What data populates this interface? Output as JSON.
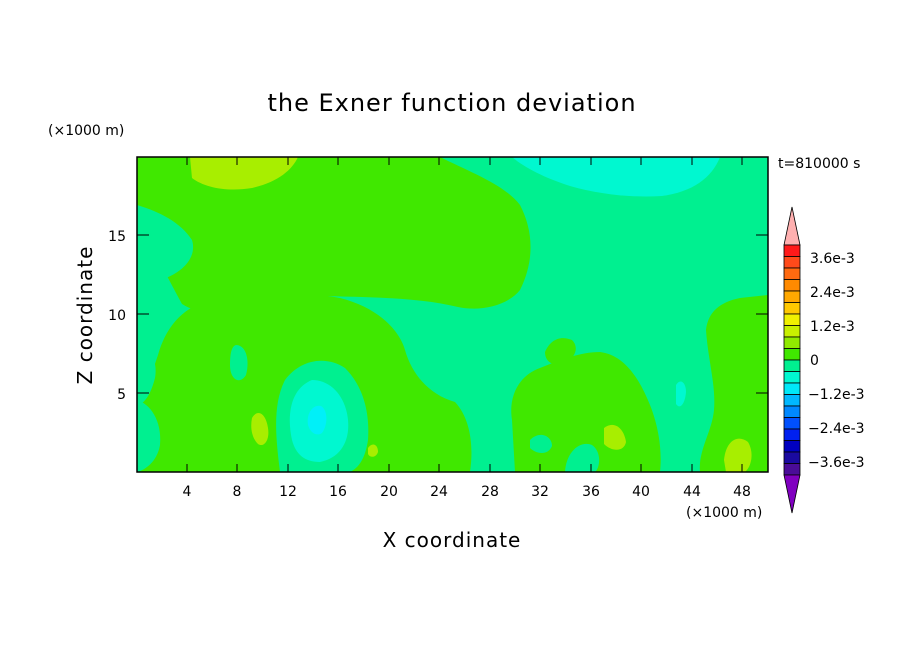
{
  "chart_data": {
    "type": "heatmap",
    "title": "the Exner function deviation",
    "xlabel": "X coordinate",
    "ylabel": "Z coordinate",
    "x_unit": "(×1000 m)",
    "y_unit": "(×1000 m)",
    "time_label": "t=810000 s",
    "xlim": [
      0,
      50
    ],
    "ylim": [
      0,
      20
    ],
    "x_ticks": [
      "4",
      "8",
      "12",
      "16",
      "20",
      "24",
      "28",
      "32",
      "36",
      "40",
      "44",
      "48"
    ],
    "y_ticks": [
      "5",
      "10",
      "15"
    ],
    "colorbar": {
      "labels": [
        "3.6e-3",
        "2.4e-3",
        "1.2e-3",
        "0",
        "−1.2e-3",
        "−2.4e-3",
        "−3.6e-3"
      ],
      "levels": [
        "#ffb0b0",
        "#ff1a1a",
        "#ff4a1a",
        "#ff7a10",
        "#ffa000",
        "#ffc400",
        "#ffe100",
        "#e8f000",
        "#b8f000",
        "#86ea00",
        "#48e000",
        "#00e060",
        "#00f0c0",
        "#00e8f8",
        "#00b8ff",
        "#0088ff",
        "#0050ff",
        "#0020f8",
        "#0000c8",
        "#2010a0",
        "#501090",
        "#8000c0"
      ],
      "triangles": true
    },
    "field": {
      "background": "#00f090",
      "regions": [
        {
          "level": "0 to 6e-4",
          "color": "#40e800"
        },
        {
          "level": "6e-4 to 1.2e-3",
          "color": "#a8ee00"
        },
        {
          "level": "-6e-4 to 0",
          "color": "#00f090"
        },
        {
          "level": "-1.2e-3 to -6e-4",
          "color": "#00f8d0"
        },
        {
          "level": "-1.8e-3 to -1.2e-3",
          "color": "#00f0f8"
        }
      ]
    }
  }
}
